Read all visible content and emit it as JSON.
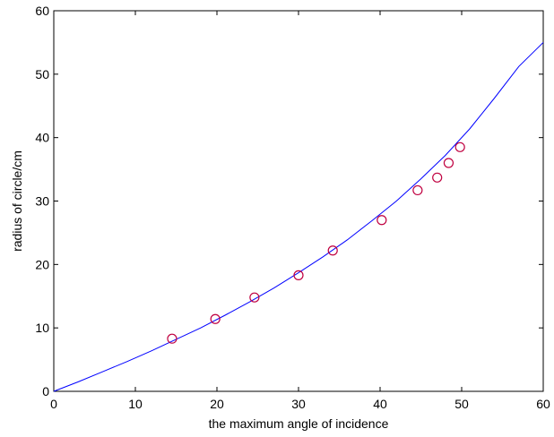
{
  "chart_data": {
    "type": "line",
    "title": "",
    "xlabel": "the maximum angle of incidence",
    "ylabel": "radius of circle/cm",
    "xlim": [
      0,
      60
    ],
    "ylim": [
      0,
      60
    ],
    "xticks": [
      0,
      10,
      20,
      30,
      40,
      50,
      60
    ],
    "yticks": [
      0,
      10,
      20,
      30,
      40,
      50,
      60
    ],
    "grid": false,
    "legend": "none",
    "series": [
      {
        "style": "line",
        "color": "#0000ff",
        "x": [
          0,
          3,
          6,
          9,
          12,
          15,
          18,
          21,
          24,
          27,
          30,
          33,
          36,
          39,
          42,
          45,
          48,
          51,
          54,
          57,
          60
        ],
        "y": [
          0,
          1.5,
          3.1,
          4.7,
          6.4,
          8.2,
          10.0,
          12.0,
          14.1,
          16.3,
          18.7,
          21.2,
          23.9,
          26.9,
          30.0,
          33.5,
          37.2,
          41.4,
          46.2,
          51.2,
          55.0
        ]
      },
      {
        "style": "scatter",
        "marker": "circle",
        "color": "#c00040",
        "x": [
          14.5,
          19.8,
          24.6,
          30.0,
          34.2,
          40.2,
          44.6,
          47.0,
          48.4,
          49.8
        ],
        "y": [
          8.3,
          11.4,
          14.8,
          18.3,
          22.2,
          27.0,
          31.7,
          33.7,
          36.0,
          38.5
        ]
      }
    ]
  }
}
